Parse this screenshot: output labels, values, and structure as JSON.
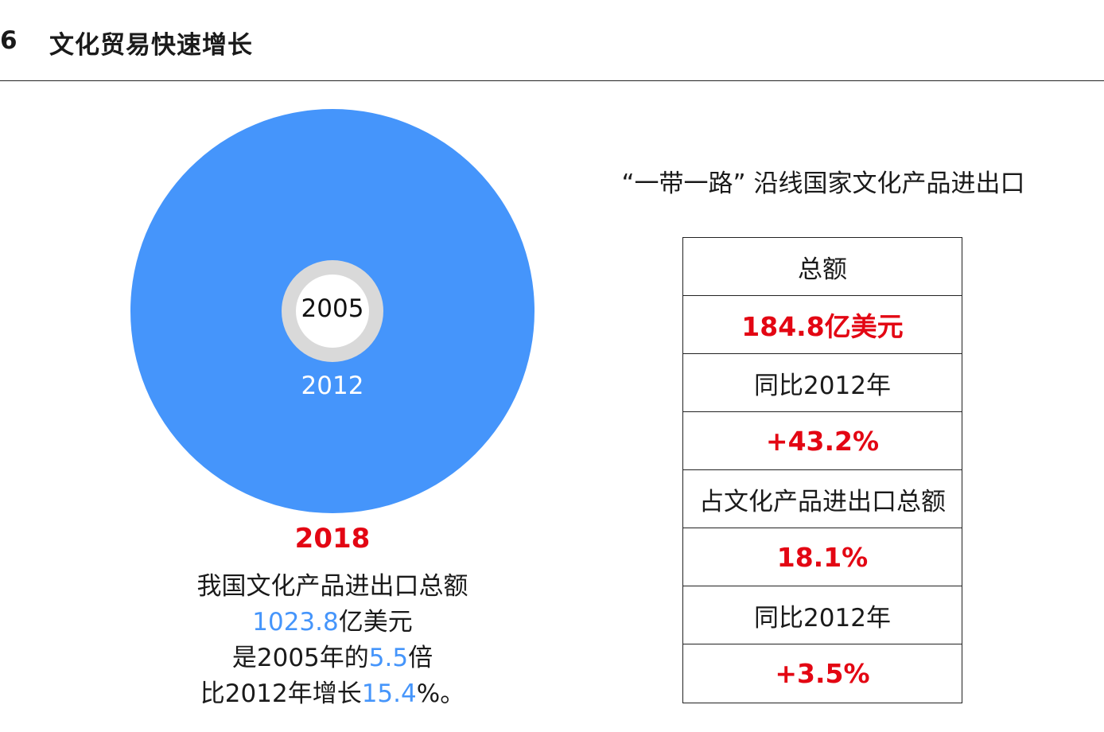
{
  "header": {
    "section_number": "6",
    "section_title": "文化贸易快速增长"
  },
  "circle_chart": {
    "inner_year": "2005",
    "outer_year": "2012",
    "colors": {
      "outer": "#4595fb",
      "inner_ring": "#d9d9d9",
      "inner_core": "#ffffff"
    }
  },
  "left_summary": {
    "year": "2018",
    "line1": "我国文化产品进出口总额",
    "line2_value": "1023.8",
    "line2_suffix": "亿美元",
    "line3_prefix": "是2005年的",
    "line3_value": "5.5",
    "line3_suffix": "倍",
    "line4_prefix": "比2012年增长",
    "line4_value": "15.4",
    "line4_suffix": "%。"
  },
  "right_panel": {
    "title": "“一带一路” 沿线国家文化产品进出口",
    "rows": [
      {
        "text": "总额",
        "highlight": false
      },
      {
        "text": "184.8亿美元",
        "highlight": true
      },
      {
        "text": "同比2012年",
        "highlight": false
      },
      {
        "text": "+43.2%",
        "highlight": true
      },
      {
        "text": "占文化产品进出口总额",
        "highlight": false
      },
      {
        "text": "18.1%",
        "highlight": true
      },
      {
        "text": "同比2012年",
        "highlight": false
      },
      {
        "text": "+3.5%",
        "highlight": true
      }
    ]
  },
  "colors": {
    "accent_blue": "#4595fb",
    "accent_red": "#e30613"
  }
}
